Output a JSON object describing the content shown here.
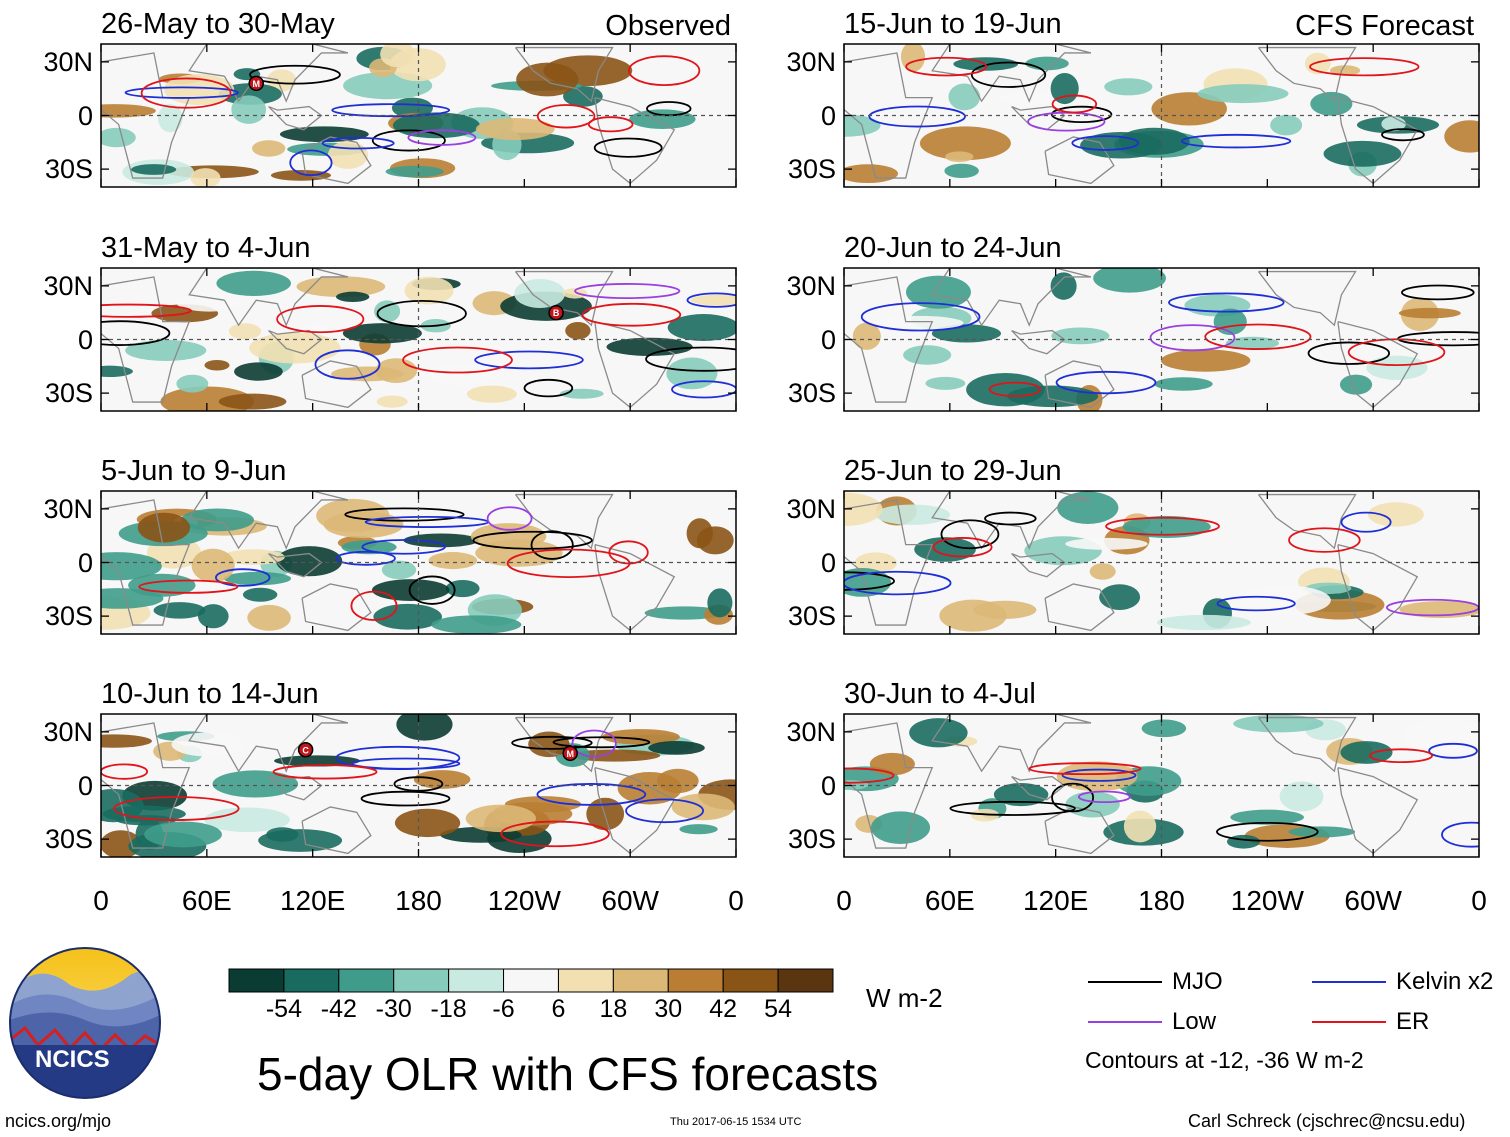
{
  "chart_data": {
    "type": "heatmap",
    "title": "5-day OLR with CFS forecasts",
    "variable": "OLR anomaly",
    "units": "W m-2",
    "colorbar": {
      "bins": [
        -60,
        -48,
        -36,
        -24,
        -12,
        0,
        12,
        24,
        36,
        48,
        60
      ],
      "tick_labels": [
        "-54",
        "-42",
        "-30",
        "-18",
        "-6",
        "6",
        "18",
        "30",
        "42",
        "54"
      ],
      "colors": [
        "#0b3c33",
        "#1a6b5f",
        "#3f9c8b",
        "#86cbbb",
        "#c9eae1",
        "#f7f7f7",
        "#f2e0b2",
        "#dcb877",
        "#b97e33",
        "#8a5416",
        "#5a3510"
      ]
    },
    "columns": [
      {
        "label": "Observed"
      },
      {
        "label": "CFS Forecast"
      }
    ],
    "panels": [
      {
        "column": 0,
        "title": "26-May to 30-May",
        "tag": "Observed"
      },
      {
        "column": 0,
        "title": "31-May to 4-Jun",
        "tag": ""
      },
      {
        "column": 0,
        "title": "5-Jun to 9-Jun",
        "tag": ""
      },
      {
        "column": 0,
        "title": "10-Jun to 14-Jun",
        "tag": ""
      },
      {
        "column": 1,
        "title": "15-Jun to 19-Jun",
        "tag": "CFS Forecast"
      },
      {
        "column": 1,
        "title": "20-Jun to 24-Jun",
        "tag": ""
      },
      {
        "column": 1,
        "title": "25-Jun to 29-Jun",
        "tag": ""
      },
      {
        "column": 1,
        "title": "30-Jun to 4-Jul",
        "tag": ""
      }
    ],
    "y_axis": {
      "ticks": [
        "30N",
        "0",
        "30S"
      ],
      "values": [
        30,
        0,
        -30
      ],
      "range": [
        -40,
        40
      ]
    },
    "x_axis": {
      "ticks": [
        "0",
        "60E",
        "120E",
        "180",
        "120W",
        "60W",
        "0"
      ],
      "values": [
        0,
        60,
        120,
        180,
        240,
        300,
        360
      ],
      "range": [
        0,
        360
      ]
    },
    "legend": [
      {
        "label": "MJO",
        "color": "#000000"
      },
      {
        "label": "Kelvin x2",
        "color": "#1f2fd6"
      },
      {
        "label": "Low",
        "color": "#9a3fe0"
      },
      {
        "label": "ER",
        "color": "#e0141a"
      }
    ],
    "contour_note": "Contours at -12, -36 W m-2",
    "storm_markers": [
      "M",
      "B",
      "C",
      "M"
    ]
  },
  "logo": {
    "text": "NCICS"
  },
  "footer": {
    "url": "ncics.org/mjo",
    "timestamp": "Thu 2017-06-15 1534 UTC",
    "credit": "Carl Schreck (cjschrec@ncsu.edu)"
  }
}
